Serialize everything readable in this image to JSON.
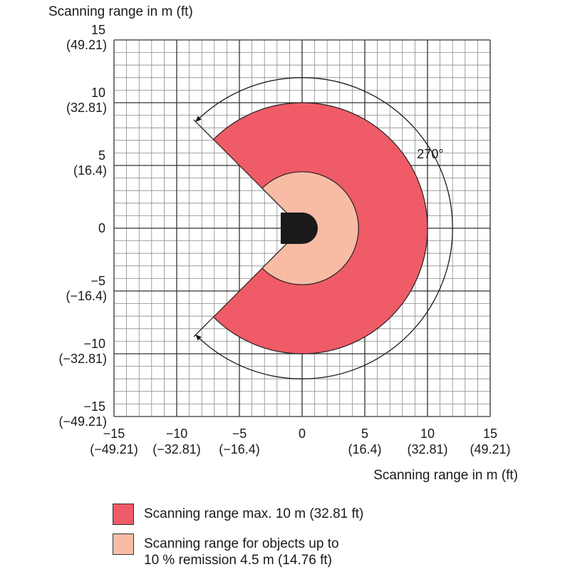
{
  "chart_data": {
    "type": "area",
    "axes": {
      "y_title": "Scanning range in m (ft)",
      "x_title": "Scanning range in m (ft)",
      "xlim": [
        -15,
        15
      ],
      "ylim": [
        -15,
        15
      ],
      "grid": true
    },
    "y_ticks": [
      {
        "value": 15,
        "m": "15",
        "ft": "(49.21)"
      },
      {
        "value": 10,
        "m": "10",
        "ft": "(32.81)"
      },
      {
        "value": 5,
        "m": "5",
        "ft": "(16.4)"
      },
      {
        "value": 0,
        "m": "0",
        "ft": ""
      },
      {
        "value": -5,
        "m": "−5",
        "ft": "(−16.4)"
      },
      {
        "value": -10,
        "m": "−10",
        "ft": "(−32.81)"
      },
      {
        "value": -15,
        "m": "−15",
        "ft": "(−49.21)"
      }
    ],
    "x_ticks": [
      {
        "value": -15,
        "m": "−15",
        "ft": "(−49.21)"
      },
      {
        "value": -10,
        "m": "−10",
        "ft": "(−32.81)"
      },
      {
        "value": -5,
        "m": "−5",
        "ft": "(−16.4)"
      },
      {
        "value": 0,
        "m": "0",
        "ft": ""
      },
      {
        "value": 5,
        "m": "5",
        "ft": "(16.4)"
      },
      {
        "value": 10,
        "m": "10",
        "ft": "(32.81)"
      },
      {
        "value": 15,
        "m": "15",
        "ft": "(49.21)"
      }
    ],
    "scan_angle_label": "270°",
    "scan_angle_deg": 270,
    "ranges": [
      {
        "radius_m": 10,
        "color": "#ef5b66"
      },
      {
        "radius_m": 4.5,
        "color": "#f8bca5"
      }
    ]
  },
  "legend": {
    "items": [
      {
        "lines": [
          "Scanning range max. 10 m (32.81 ft)"
        ],
        "color": "#ef5b66"
      },
      {
        "lines": [
          "Scanning range for objects up to",
          "10 % remission 4.5 m (14.76 ft)"
        ],
        "color": "#f8bca5"
      }
    ]
  }
}
